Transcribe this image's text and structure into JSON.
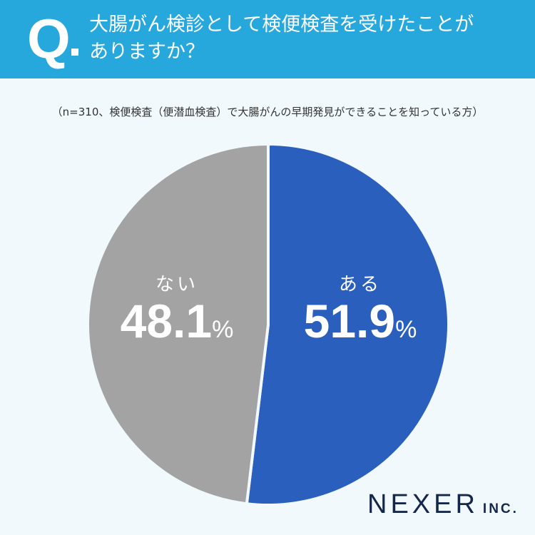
{
  "header": {
    "q_label": "Q",
    "question_line1": "大腸がん検診として検便検査を受けたことが",
    "question_line2": "ありますか？"
  },
  "subtitle": "（n=310、検便検査（便潜血検査）で大腸がんの早期発見ができることを知っている方）",
  "labels": {
    "yes": {
      "category": "ある",
      "value": "51.9",
      "unit": "%"
    },
    "no": {
      "category": "ない",
      "value": "48.1",
      "unit": "%"
    }
  },
  "logo": {
    "name": "NEXER",
    "suffix": "INC."
  },
  "colors": {
    "header": "#27a8dc",
    "yes": "#2a5fbd",
    "no": "#a3a3a3",
    "background": "#f1f9fd"
  },
  "chart_data": {
    "type": "pie",
    "title": "大腸がん検診として検便検査を受けたことがありますか？",
    "subtitle": "（n=310、検便検査（便潜血検査）で大腸がんの早期発見ができることを知っている方）",
    "categories": [
      "ある",
      "ない"
    ],
    "values": [
      51.9,
      48.1
    ],
    "unit": "%",
    "colors": [
      "#2a5fbd",
      "#a3a3a3"
    ],
    "start_angle": "12 o'clock, clockwise",
    "legend": "none (labels inside slices)"
  }
}
